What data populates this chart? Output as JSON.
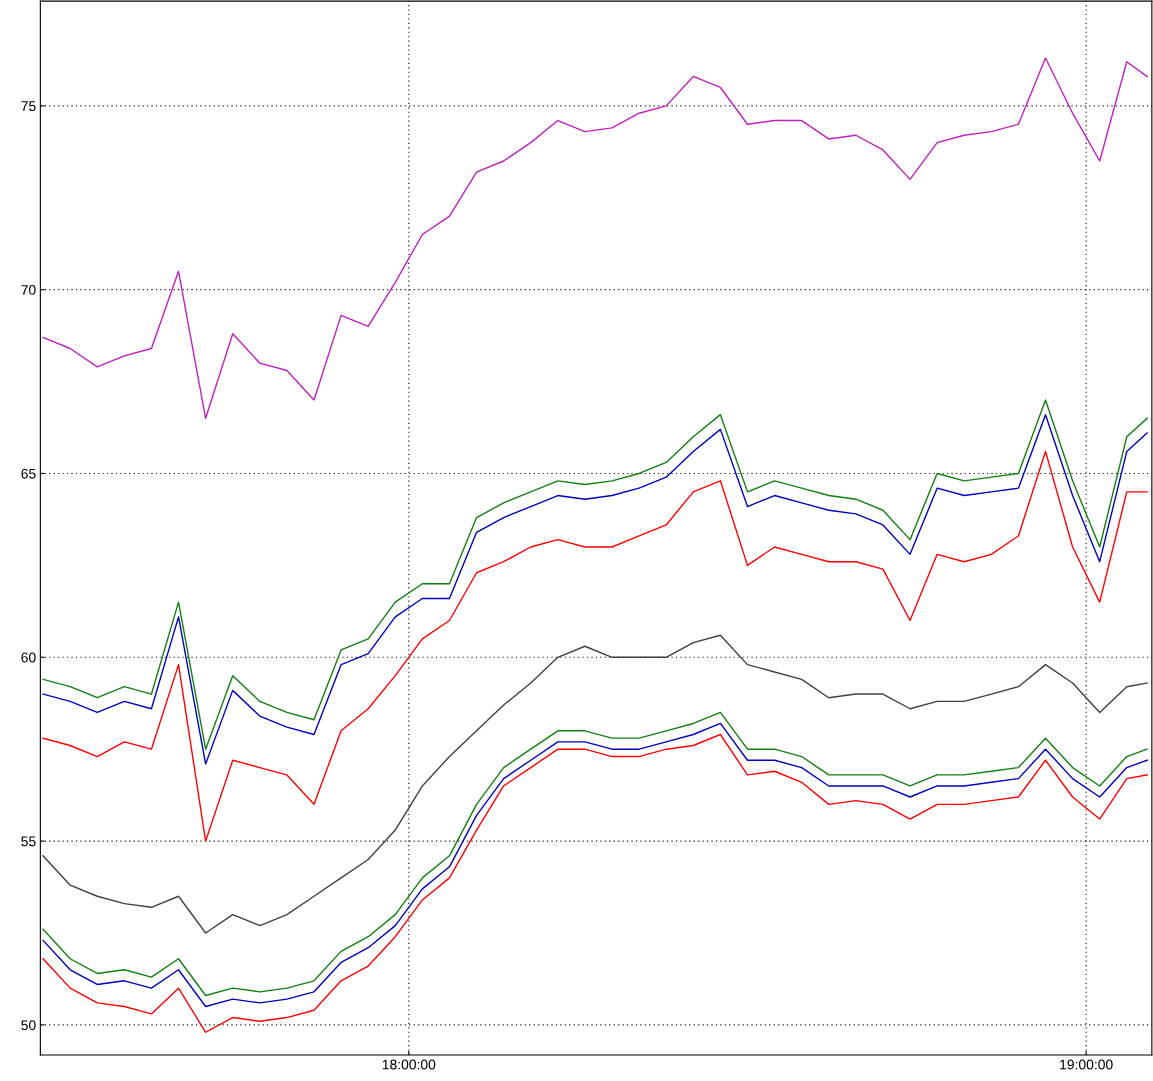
{
  "chart_data": {
    "type": "line",
    "x": [
      17.46,
      17.5,
      17.54,
      17.58,
      17.62,
      17.66,
      17.7,
      17.74,
      17.78,
      17.82,
      17.86,
      17.9,
      17.94,
      17.98,
      18.02,
      18.06,
      18.1,
      18.14,
      18.18,
      18.22,
      18.26,
      18.3,
      18.34,
      18.38,
      18.42,
      18.46,
      18.5,
      18.54,
      18.58,
      18.62,
      18.66,
      18.7,
      18.74,
      18.78,
      18.82,
      18.86,
      18.9,
      18.94,
      18.98,
      19.02,
      19.06,
      19.09
    ],
    "xlim": [
      17.456,
      19.097
    ],
    "xticks": [
      {
        "value": 18,
        "label": "18:00:00"
      },
      {
        "value": 19,
        "label": "19:00:00"
      }
    ],
    "ylim": [
      49.18,
      77.85
    ],
    "yticks": [
      50,
      55,
      60,
      65,
      70,
      75
    ],
    "grid": true,
    "series": [
      {
        "color": "#c020c0",
        "values": [
          68.7,
          68.4,
          67.9,
          68.2,
          68.4,
          70.5,
          66.5,
          68.8,
          68.0,
          67.8,
          67.0,
          69.3,
          69.0,
          70.2,
          71.5,
          72.0,
          73.2,
          73.5,
          74.0,
          74.6,
          74.3,
          74.4,
          74.8,
          75.0,
          75.8,
          75.5,
          74.5,
          74.6,
          74.6,
          74.1,
          74.2,
          73.8,
          73.0,
          74.0,
          74.2,
          74.3,
          74.5,
          76.3,
          74.8,
          73.5,
          76.2,
          75.8
        ]
      },
      {
        "color": "#404040",
        "values": [
          54.6,
          53.8,
          53.5,
          53.3,
          53.2,
          53.5,
          52.5,
          53.0,
          52.7,
          53.0,
          53.5,
          54.0,
          54.5,
          55.3,
          56.5,
          57.3,
          58.0,
          58.7,
          59.3,
          60.0,
          60.3,
          60.0,
          60.0,
          60.0,
          60.4,
          60.6,
          59.8,
          59.6,
          59.4,
          58.9,
          59.0,
          59.0,
          58.6,
          58.8,
          58.8,
          59.0,
          59.2,
          59.8,
          59.3,
          58.5,
          59.2,
          59.3
        ]
      },
      {
        "color": "#0000c0",
        "values": [
          59.0,
          58.8,
          58.5,
          58.8,
          58.6,
          61.1,
          57.1,
          59.1,
          58.4,
          58.1,
          57.9,
          59.8,
          60.1,
          61.1,
          61.6,
          61.6,
          63.4,
          63.8,
          64.1,
          64.4,
          64.3,
          64.4,
          64.6,
          64.9,
          65.6,
          66.2,
          64.1,
          64.4,
          64.2,
          64.0,
          63.9,
          63.6,
          62.8,
          64.6,
          64.4,
          64.5,
          64.6,
          66.6,
          64.4,
          62.6,
          65.6,
          66.1
        ]
      },
      {
        "color": "#108010",
        "values": [
          59.4,
          59.2,
          58.9,
          59.2,
          59.0,
          61.5,
          57.5,
          59.5,
          58.8,
          58.5,
          58.3,
          60.2,
          60.5,
          61.5,
          62.0,
          62.0,
          63.8,
          64.2,
          64.5,
          64.8,
          64.7,
          64.8,
          65.0,
          65.3,
          66.0,
          66.6,
          64.5,
          64.8,
          64.6,
          64.4,
          64.3,
          64.0,
          63.2,
          65.0,
          64.8,
          64.9,
          65.0,
          67.0,
          64.8,
          63.0,
          66.0,
          66.5
        ]
      },
      {
        "color": "#ff0000",
        "values": [
          57.8,
          57.6,
          57.3,
          57.7,
          57.5,
          59.8,
          55.0,
          57.2,
          57.0,
          56.8,
          56.0,
          58.0,
          58.6,
          59.5,
          60.5,
          61.0,
          62.3,
          62.6,
          63.0,
          63.2,
          63.0,
          63.0,
          63.3,
          63.6,
          64.5,
          64.8,
          62.5,
          63.0,
          62.8,
          62.6,
          62.6,
          62.4,
          61.0,
          62.8,
          62.6,
          62.8,
          63.3,
          65.6,
          63.0,
          61.5,
          64.5,
          64.5
        ]
      },
      {
        "color": "#0000c0",
        "values": [
          52.3,
          51.5,
          51.1,
          51.2,
          51.0,
          51.5,
          50.5,
          50.7,
          50.6,
          50.7,
          50.9,
          51.7,
          52.1,
          52.7,
          53.7,
          54.3,
          55.7,
          56.7,
          57.2,
          57.7,
          57.7,
          57.5,
          57.5,
          57.7,
          57.9,
          58.2,
          57.2,
          57.2,
          57.0,
          56.5,
          56.5,
          56.5,
          56.2,
          56.5,
          56.5,
          56.6,
          56.7,
          57.5,
          56.7,
          56.2,
          57.0,
          57.2
        ]
      },
      {
        "color": "#108010",
        "values": [
          52.6,
          51.8,
          51.4,
          51.5,
          51.3,
          51.8,
          50.8,
          51.0,
          50.9,
          51.0,
          51.2,
          52.0,
          52.4,
          53.0,
          54.0,
          54.6,
          56.0,
          57.0,
          57.5,
          58.0,
          58.0,
          57.8,
          57.8,
          58.0,
          58.2,
          58.5,
          57.5,
          57.5,
          57.3,
          56.8,
          56.8,
          56.8,
          56.5,
          56.8,
          56.8,
          56.9,
          57.0,
          57.8,
          57.0,
          56.5,
          57.3,
          57.5
        ]
      },
      {
        "color": "#ff0000",
        "values": [
          51.8,
          51.0,
          50.6,
          50.5,
          50.3,
          51.0,
          49.8,
          50.2,
          50.1,
          50.2,
          50.4,
          51.2,
          51.6,
          52.4,
          53.4,
          54.0,
          55.3,
          56.5,
          57.0,
          57.5,
          57.5,
          57.3,
          57.3,
          57.5,
          57.6,
          57.9,
          56.8,
          56.9,
          56.6,
          56.0,
          56.1,
          56.0,
          55.6,
          56.0,
          56.0,
          56.1,
          56.2,
          57.2,
          56.2,
          55.6,
          56.7,
          56.8
        ]
      }
    ]
  }
}
